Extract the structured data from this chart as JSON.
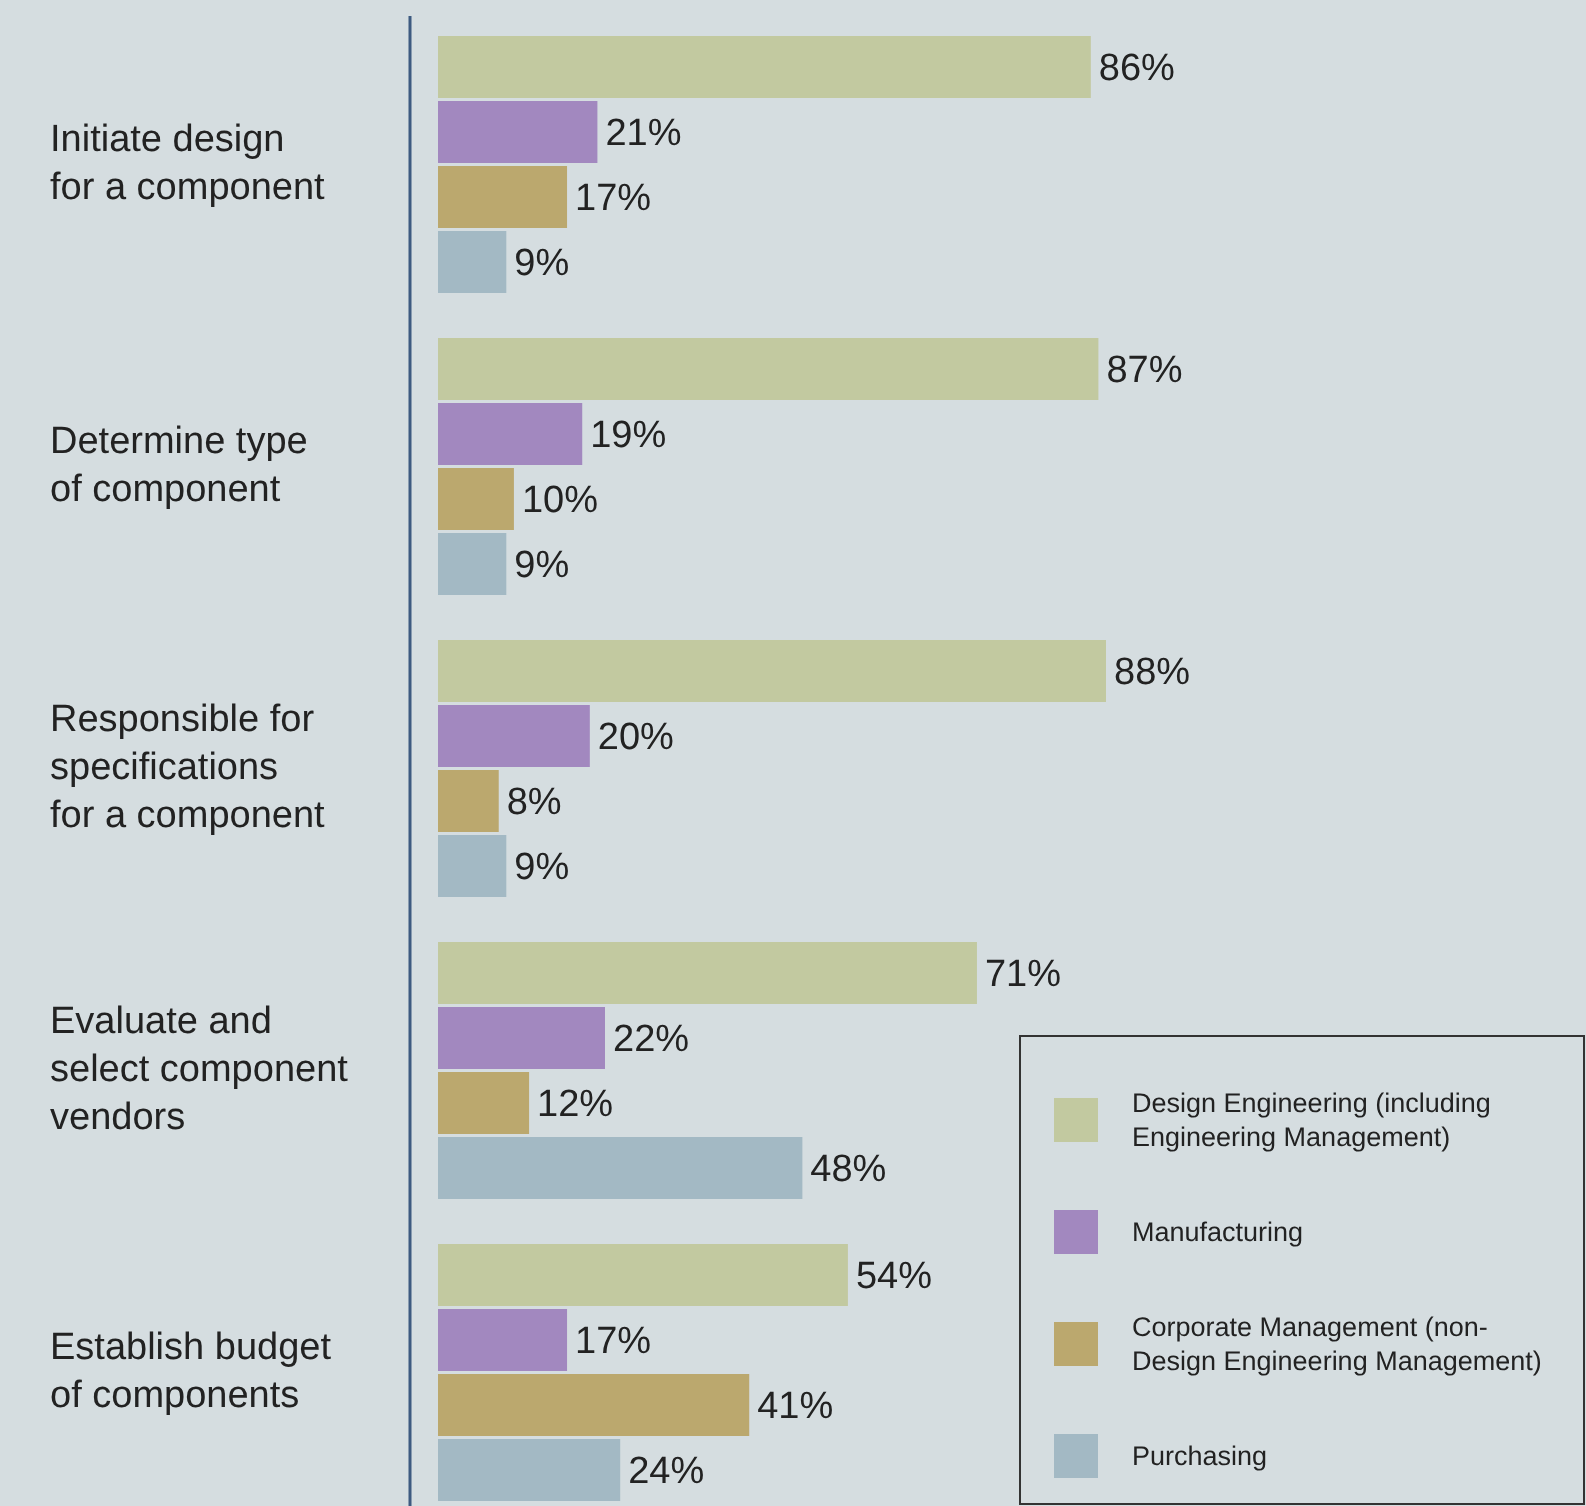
{
  "chart_data": {
    "type": "bar",
    "orientation": "horizontal",
    "categories": [
      "Initiate design for a component",
      "Determine type of component",
      "Responsible for specifications for a component",
      "Evaluate and select component vendors",
      "Establish budget of components"
    ],
    "series": [
      {
        "name": "Design Engineering (including Engineering Management)",
        "color": "#c2c9a0",
        "values": [
          86,
          87,
          88,
          71,
          54
        ],
        "value_labels": [
          "86%",
          "87%",
          "88%",
          "71%",
          "54%"
        ]
      },
      {
        "name": "Manufacturing",
        "color": "#a288bf",
        "values": [
          21,
          19,
          20,
          22,
          17
        ],
        "value_labels": [
          "21%",
          "19%",
          "20%",
          "22%",
          "17%"
        ]
      },
      {
        "name": "Corporate Management (non-Design Engineering Management)",
        "color": "#bba86e",
        "values": [
          17,
          10,
          8,
          12,
          41
        ],
        "value_labels": [
          "17%",
          "10%",
          "8%",
          "12%",
          "41%"
        ]
      },
      {
        "name": "Purchasing",
        "color": "#a3b9c4",
        "values": [
          9,
          9,
          9,
          48,
          24
        ],
        "value_labels": [
          "9%",
          "9%",
          "9%",
          "48%",
          "24%"
        ]
      }
    ],
    "legend": "bottom right"
  }
}
